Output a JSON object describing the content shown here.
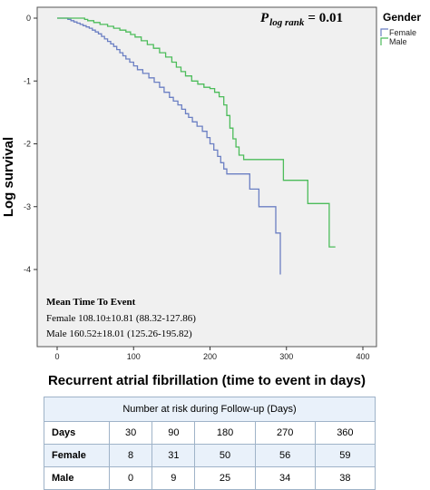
{
  "chart_data": {
    "type": "line",
    "xlabel": "Recurrent atrial fibrillation (time to event in days)",
    "ylabel": "Log survival",
    "xlim": [
      0,
      400
    ],
    "ylim": [
      -4.4,
      0.1
    ],
    "x_ticks": [
      0,
      100,
      200,
      300,
      400
    ],
    "y_ticks": [
      0,
      -1,
      -2,
      -3,
      -4
    ],
    "grid": false,
    "step": true,
    "legend": {
      "title": "Gender",
      "position": "top-right",
      "entries": [
        "Female",
        "Male"
      ]
    },
    "annotation_p": {
      "prefix": "P",
      "subscript": "log rank",
      "value": "= 0.01"
    },
    "mean_time": {
      "title": "Mean Time To Event",
      "lines": [
        "Female 108.10±10.81 (88.32-127.86)",
        "Male 160.52±18.01 (125.26-195.82)"
      ]
    },
    "series": [
      {
        "name": "Female",
        "color": "#6b7fc3",
        "points": [
          [
            0,
            0
          ],
          [
            10,
            0
          ],
          [
            14,
            -0.02
          ],
          [
            18,
            -0.04
          ],
          [
            22,
            -0.06
          ],
          [
            26,
            -0.08
          ],
          [
            30,
            -0.1
          ],
          [
            34,
            -0.12
          ],
          [
            38,
            -0.14
          ],
          [
            42,
            -0.16
          ],
          [
            46,
            -0.19
          ],
          [
            50,
            -0.22
          ],
          [
            54,
            -0.25
          ],
          [
            58,
            -0.29
          ],
          [
            62,
            -0.33
          ],
          [
            66,
            -0.37
          ],
          [
            70,
            -0.41
          ],
          [
            74,
            -0.45
          ],
          [
            78,
            -0.5
          ],
          [
            82,
            -0.55
          ],
          [
            86,
            -0.6
          ],
          [
            90,
            -0.65
          ],
          [
            95,
            -0.7
          ],
          [
            100,
            -0.76
          ],
          [
            105,
            -0.82
          ],
          [
            112,
            -0.88
          ],
          [
            120,
            -0.95
          ],
          [
            127,
            -1.02
          ],
          [
            134,
            -1.1
          ],
          [
            140,
            -1.18
          ],
          [
            147,
            -1.26
          ],
          [
            152,
            -1.32
          ],
          [
            158,
            -1.38
          ],
          [
            163,
            -1.45
          ],
          [
            168,
            -1.52
          ],
          [
            172,
            -1.58
          ],
          [
            177,
            -1.65
          ],
          [
            183,
            -1.72
          ],
          [
            190,
            -1.8
          ],
          [
            196,
            -1.9
          ],
          [
            200,
            -2.0
          ],
          [
            205,
            -2.1
          ],
          [
            210,
            -2.2
          ],
          [
            214,
            -2.3
          ],
          [
            218,
            -2.4
          ],
          [
            222,
            -2.48
          ],
          [
            240,
            -2.48
          ],
          [
            252,
            -2.72
          ],
          [
            258,
            -2.72
          ],
          [
            264,
            -3.0
          ],
          [
            280,
            -3.0
          ],
          [
            286,
            -3.42
          ],
          [
            292,
            -4.08
          ]
        ]
      },
      {
        "name": "Male",
        "color": "#4cbc5a",
        "points": [
          [
            0,
            0
          ],
          [
            28,
            0
          ],
          [
            36,
            -0.02
          ],
          [
            40,
            -0.04
          ],
          [
            48,
            -0.07
          ],
          [
            56,
            -0.1
          ],
          [
            66,
            -0.13
          ],
          [
            74,
            -0.16
          ],
          [
            82,
            -0.19
          ],
          [
            90,
            -0.22
          ],
          [
            96,
            -0.26
          ],
          [
            102,
            -0.3
          ],
          [
            110,
            -0.36
          ],
          [
            118,
            -0.42
          ],
          [
            126,
            -0.48
          ],
          [
            134,
            -0.55
          ],
          [
            142,
            -0.62
          ],
          [
            150,
            -0.7
          ],
          [
            156,
            -0.78
          ],
          [
            162,
            -0.85
          ],
          [
            168,
            -0.92
          ],
          [
            176,
            -1.0
          ],
          [
            184,
            -1.05
          ],
          [
            192,
            -1.1
          ],
          [
            200,
            -1.12
          ],
          [
            206,
            -1.18
          ],
          [
            212,
            -1.25
          ],
          [
            218,
            -1.38
          ],
          [
            222,
            -1.55
          ],
          [
            226,
            -1.75
          ],
          [
            230,
            -1.92
          ],
          [
            234,
            -2.05
          ],
          [
            238,
            -2.18
          ],
          [
            244,
            -2.25
          ],
          [
            290,
            -2.25
          ],
          [
            296,
            -2.58
          ],
          [
            322,
            -2.58
          ],
          [
            328,
            -2.95
          ],
          [
            348,
            -2.95
          ],
          [
            356,
            -3.64
          ],
          [
            364,
            -3.64
          ]
        ]
      }
    ]
  },
  "risk_table": {
    "caption": "Number at risk during Follow-up (Days)",
    "header_label": "Days",
    "columns": [
      "30",
      "90",
      "180",
      "270",
      "360"
    ],
    "rows": [
      {
        "label": "Female",
        "values": [
          "8",
          "31",
          "50",
          "56",
          "59"
        ]
      },
      {
        "label": "Male",
        "values": [
          "0",
          "9",
          "25",
          "34",
          "38"
        ]
      }
    ]
  }
}
